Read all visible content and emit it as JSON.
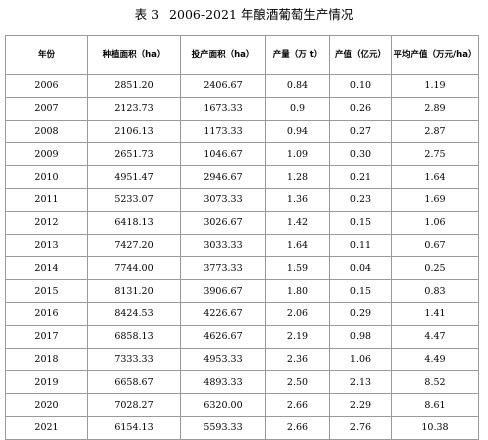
{
  "table_title_prefix": "表 3",
  "table_title_main": "2006-2021 年酿酒葡萄生产情况",
  "headers": [
    "年份",
    "种植面积（ha）",
    "投产面积（ha）",
    "产量（万 t）",
    "产值（亿元）",
    "平均产值（万元/ha）"
  ],
  "rows": [
    [
      "2006",
      "2851.20",
      "2406.67",
      "0.84",
      "0.10",
      "1.19"
    ],
    [
      "2007",
      "2123.73",
      "1673.33",
      "0.9",
      "0.26",
      "2.89"
    ],
    [
      "2008",
      "2106.13",
      "1173.33",
      "0.94",
      "0.27",
      "2.87"
    ],
    [
      "2009",
      "2651.73",
      "1046.67",
      "1.09",
      "0.30",
      "2.75"
    ],
    [
      "2010",
      "4951.47",
      "2946.67",
      "1.28",
      "0.21",
      "1.64"
    ],
    [
      "2011",
      "5233.07",
      "3073.33",
      "1.36",
      "0.23",
      "1.69"
    ],
    [
      "2012",
      "6418.13",
      "3026.67",
      "1.42",
      "0.15",
      "1.06"
    ],
    [
      "2013",
      "7427.20",
      "3033.33",
      "1.64",
      "0.11",
      "0.67"
    ],
    [
      "2014",
      "7744.00",
      "3773.33",
      "1.59",
      "0.04",
      "0.25"
    ],
    [
      "2015",
      "8131.20",
      "3906.67",
      "1.80",
      "0.15",
      "0.83"
    ],
    [
      "2016",
      "8424.53",
      "4226.67",
      "2.06",
      "0.29",
      "1.41"
    ],
    [
      "2017",
      "6858.13",
      "4626.67",
      "2.19",
      "0.98",
      "4.47"
    ],
    [
      "2018",
      "7333.33",
      "4953.33",
      "2.36",
      "1.06",
      "4.49"
    ],
    [
      "2019",
      "6658.67",
      "4893.33",
      "2.50",
      "2.13",
      "8.52"
    ],
    [
      "2020",
      "7028.27",
      "6320.00",
      "2.66",
      "2.29",
      "8.61"
    ],
    [
      "2021",
      "6154.13",
      "5593.33",
      "2.66",
      "2.76",
      "10.38"
    ]
  ]
}
